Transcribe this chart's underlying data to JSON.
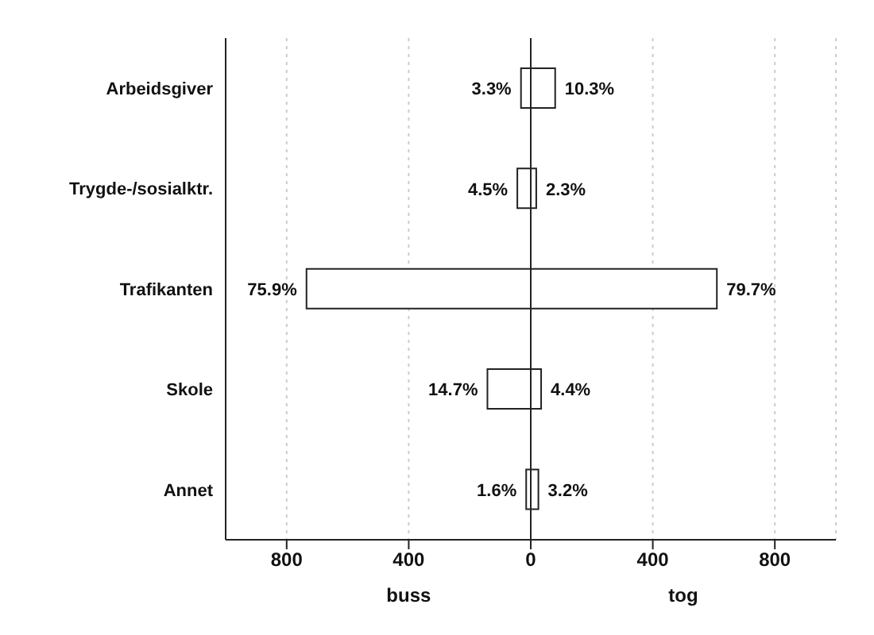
{
  "chart_data": {
    "type": "bar",
    "orientation": "horizontal",
    "stacked": true,
    "categories": [
      "Arbeidsgiver",
      "Trygde-/sosialktr.",
      "Trafikanten",
      "Skole",
      "Annet"
    ],
    "series": [
      {
        "color": "#ffffff",
        "values": [
          -32,
          -44,
          -735,
          -142,
          -15
        ]
      },
      {
        "color": "#ffffff",
        "values": [
          80,
          18,
          610,
          34,
          25
        ]
      }
    ],
    "xlim": [
      -1000,
      1000
    ],
    "xticks": [
      {
        "value": -800,
        "label": "800"
      },
      {
        "value": -400,
        "label": "400"
      },
      0,
      400,
      800
    ],
    "grid": "x",
    "ref_lines": [
      {
        "axis": "x",
        "value": 0
      }
    ],
    "annotations": [
      "buss",
      "tog",
      {
        "text": "3.3%",
        "x": -32,
        "y": "Arbeidsgiver"
      },
      {
        "text": "10.3%",
        "x": 80,
        "y": "Arbeidsgiver"
      },
      {
        "text": "4.5%",
        "x": -44,
        "y": "Trygde-/sosialktr."
      },
      {
        "text": "2.3%",
        "x": 18,
        "y": "Trygde-/sosialktr."
      },
      {
        "text": "75.9%",
        "x": -735,
        "y": "Trafikanten"
      },
      {
        "text": "79.7%",
        "x": 610,
        "y": "Trafikanten"
      },
      {
        "text": "14.7%",
        "x": -142,
        "y": "Skole"
      },
      {
        "text": "4.4%",
        "x": 34,
        "y": "Skole"
      },
      {
        "text": "1.6%",
        "x": -15,
        "y": "Annet"
      },
      {
        "text": "3.2%",
        "x": 25,
        "y": "Annet"
      }
    ]
  }
}
